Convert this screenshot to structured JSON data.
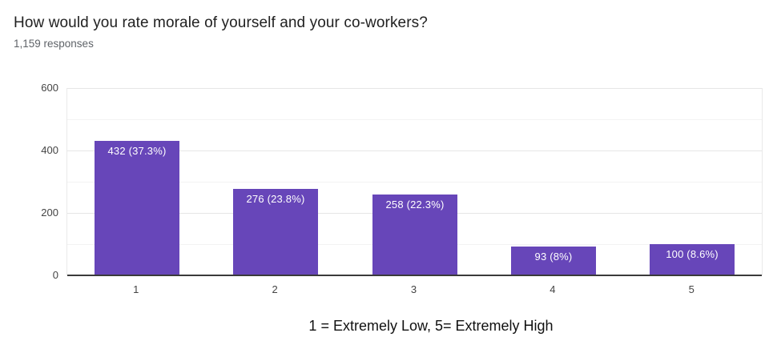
{
  "header": {
    "title": "How would you rate morale of yourself and your co-workers?",
    "subtitle": "1,159 responses"
  },
  "caption": "1 = Extremely Low, 5= Extremely High",
  "colors": {
    "bar": "#6746b9",
    "annotation_text": "#ffffff",
    "axis_baseline": "#3a3a3a",
    "major_gridline": "#e6e6e6",
    "minor_gridline": "#f3f3f3",
    "title_text": "#212121",
    "subtitle_text": "#5f6368",
    "tick_text": "#444444",
    "caption_text": "#111111"
  },
  "chart_data": {
    "type": "bar",
    "title": "How would you rate morale of yourself and your co-workers?",
    "subtitle": "1,159 responses",
    "categories": [
      "1",
      "2",
      "3",
      "4",
      "5"
    ],
    "values": [
      432,
      276,
      258,
      93,
      100
    ],
    "bar_labels": [
      "432 (37.3%)",
      "276 (23.8%)",
      "258 (22.3%)",
      "93 (8%)",
      "100 (8.6%)"
    ],
    "percentages": [
      37.3,
      23.8,
      22.3,
      8,
      8.6
    ],
    "total_responses": 1159,
    "xlabel": "",
    "ylabel": "",
    "ylim": [
      0,
      600
    ],
    "yticks": [
      0,
      200,
      400,
      600
    ],
    "minor_grid_step": 100,
    "grid": true,
    "legend_position": "none",
    "footnote": "1 = Extremely Low, 5= Extremely High"
  }
}
